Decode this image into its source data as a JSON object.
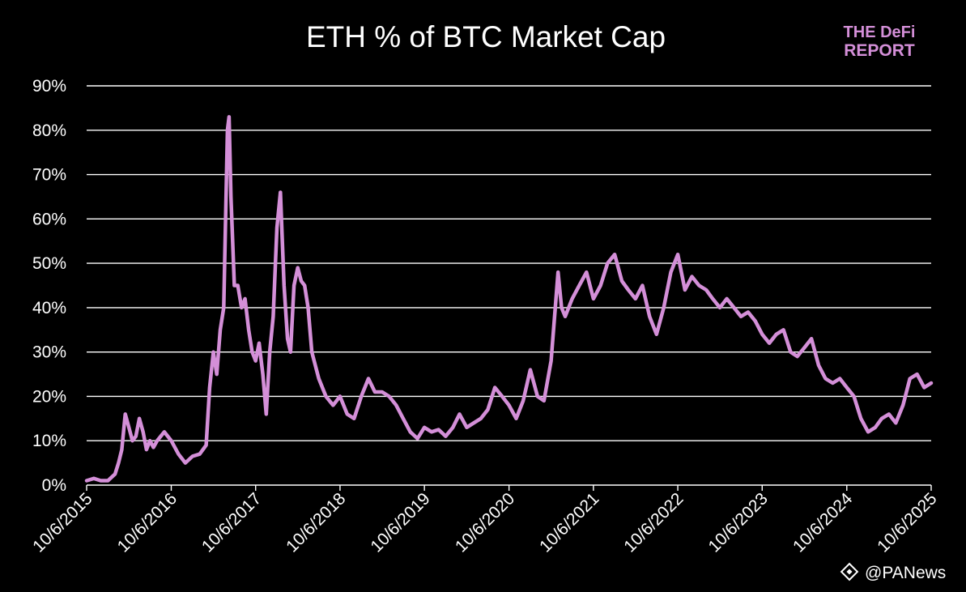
{
  "logo": {
    "line1": "THE DeFi",
    "line2": "REPORT"
  },
  "watermark": {
    "text": "@PANews",
    "symbol": "@"
  },
  "colors": {
    "background": "#000000",
    "line": "#d48fd8",
    "grid": "#ffffff",
    "text": "#ffffff"
  },
  "chart_data": {
    "type": "line",
    "title": "ETH % of BTC Market Cap",
    "xlabel": "",
    "ylabel": "",
    "grid": true,
    "legend": "none",
    "y_unit": "%",
    "ylim": [
      0,
      90
    ],
    "yticks": [
      0,
      10,
      20,
      30,
      40,
      50,
      60,
      70,
      80,
      90
    ],
    "ytick_labels": [
      "0%",
      "10%",
      "20%",
      "30%",
      "40%",
      "50%",
      "60%",
      "70%",
      "80%",
      "90%"
    ],
    "xlim": [
      "2015-10-06",
      "2025-10-06"
    ],
    "xticks": [
      "2015-10-06",
      "2016-10-06",
      "2017-10-06",
      "2018-10-06",
      "2019-10-06",
      "2020-10-06",
      "2021-10-06",
      "2022-10-06",
      "2023-10-06",
      "2024-10-06",
      "2025-10-06"
    ],
    "xtick_labels": [
      "10/6/2015",
      "10/6/2016",
      "10/6/2017",
      "10/6/2018",
      "10/6/2019",
      "10/6/2020",
      "10/6/2021",
      "10/6/2022",
      "10/6/2023",
      "10/6/2024",
      "10/6/2025"
    ],
    "series": [
      {
        "x": [
          "2015-10-06",
          "2015-11-06",
          "2015-12-06",
          "2016-01-06",
          "2016-02-06",
          "2016-02-21",
          "2016-03-06",
          "2016-03-21",
          "2016-04-06",
          "2016-04-21",
          "2016-05-06",
          "2016-05-21",
          "2016-06-06",
          "2016-06-21",
          "2016-07-06",
          "2016-07-21",
          "2016-08-06",
          "2016-09-06",
          "2016-10-06",
          "2016-11-06",
          "2016-12-06",
          "2017-01-06",
          "2017-02-06",
          "2017-03-06",
          "2017-03-21",
          "2017-04-06",
          "2017-04-21",
          "2017-05-06",
          "2017-05-21",
          "2017-06-06",
          "2017-06-13",
          "2017-06-21",
          "2017-07-06",
          "2017-07-21",
          "2017-08-06",
          "2017-08-21",
          "2017-09-06",
          "2017-09-21",
          "2017-10-06",
          "2017-10-21",
          "2017-11-06",
          "2017-11-21",
          "2017-12-06",
          "2017-12-21",
          "2018-01-06",
          "2018-01-21",
          "2018-02-06",
          "2018-02-21",
          "2018-03-06",
          "2018-03-21",
          "2018-04-06",
          "2018-04-21",
          "2018-05-06",
          "2018-05-21",
          "2018-06-06",
          "2018-07-06",
          "2018-08-06",
          "2018-09-06",
          "2018-10-06",
          "2018-11-06",
          "2018-12-06",
          "2019-01-06",
          "2019-02-06",
          "2019-03-06",
          "2019-04-06",
          "2019-05-06",
          "2019-06-06",
          "2019-07-06",
          "2019-08-06",
          "2019-09-06",
          "2019-10-06",
          "2019-11-06",
          "2019-12-06",
          "2020-01-06",
          "2020-02-06",
          "2020-03-06",
          "2020-04-06",
          "2020-05-06",
          "2020-06-06",
          "2020-07-06",
          "2020-08-06",
          "2020-09-06",
          "2020-10-06",
          "2020-11-06",
          "2020-12-06",
          "2021-01-06",
          "2021-02-06",
          "2021-03-06",
          "2021-04-06",
          "2021-05-06",
          "2021-05-21",
          "2021-06-06",
          "2021-07-06",
          "2021-08-06",
          "2021-09-06",
          "2021-10-06",
          "2021-11-06",
          "2021-12-06",
          "2022-01-06",
          "2022-02-06",
          "2022-03-06",
          "2022-04-06",
          "2022-05-06",
          "2022-06-06",
          "2022-07-06",
          "2022-08-06",
          "2022-09-06",
          "2022-10-06",
          "2022-11-06",
          "2022-12-06",
          "2023-01-06",
          "2023-02-06",
          "2023-03-06",
          "2023-04-06",
          "2023-05-06",
          "2023-06-06",
          "2023-07-06",
          "2023-08-06",
          "2023-09-06",
          "2023-10-06",
          "2023-11-06",
          "2023-12-06",
          "2024-01-06",
          "2024-02-06",
          "2024-03-06",
          "2024-04-06",
          "2024-05-06",
          "2024-06-06",
          "2024-07-06",
          "2024-08-06",
          "2024-09-06",
          "2024-10-06",
          "2024-11-06",
          "2024-12-06",
          "2025-01-06",
          "2025-02-06",
          "2025-03-06",
          "2025-04-06",
          "2025-05-06",
          "2025-06-06",
          "2025-07-06",
          "2025-08-06",
          "2025-09-06",
          "2025-10-06"
        ],
        "values": [
          1.0,
          1.5,
          1.0,
          1.0,
          2.5,
          5.0,
          8.0,
          16.0,
          13.0,
          10.0,
          11.0,
          15.0,
          12.0,
          8.0,
          10.0,
          8.5,
          10.0,
          12.0,
          10.0,
          7.0,
          5.0,
          6.5,
          7.0,
          9.0,
          22.0,
          30.0,
          25.0,
          35.0,
          40.0,
          80.0,
          83.0,
          65.0,
          45.0,
          45.0,
          40.0,
          42.0,
          35.0,
          30.0,
          28.0,
          32.0,
          25.0,
          16.0,
          30.0,
          38.0,
          58.0,
          66.0,
          45.0,
          33.0,
          30.0,
          45.0,
          49.0,
          46.0,
          45.0,
          40.0,
          30.0,
          24.0,
          20.0,
          18.0,
          20.0,
          16.0,
          15.0,
          20.0,
          24.0,
          21.0,
          21.0,
          20.0,
          18.0,
          15.0,
          12.0,
          10.5,
          13.0,
          12.0,
          12.5,
          11.0,
          13.0,
          16.0,
          13.0,
          14.0,
          15.0,
          17.0,
          22.0,
          20.0,
          18.0,
          15.0,
          19.0,
          26.0,
          20.0,
          19.0,
          28.0,
          48.0,
          40.0,
          38.0,
          42.0,
          45.0,
          48.0,
          42.0,
          45.0,
          50.0,
          52.0,
          46.0,
          44.0,
          42.0,
          45.0,
          38.0,
          34.0,
          40.0,
          48.0,
          52.0,
          44.0,
          47.0,
          45.0,
          44.0,
          42.0,
          40.0,
          42.0,
          40.0,
          38.0,
          39.0,
          37.0,
          34.0,
          32.0,
          34.0,
          35.0,
          30.0,
          29.0,
          31.0,
          33.0,
          27.0,
          24.0,
          23.0,
          24.0,
          22.0,
          20.0,
          15.0,
          12.0,
          13.0,
          15.0,
          16.0,
          14.0,
          18.0,
          24.0,
          25.0,
          22.0,
          23.0
        ]
      }
    ]
  }
}
